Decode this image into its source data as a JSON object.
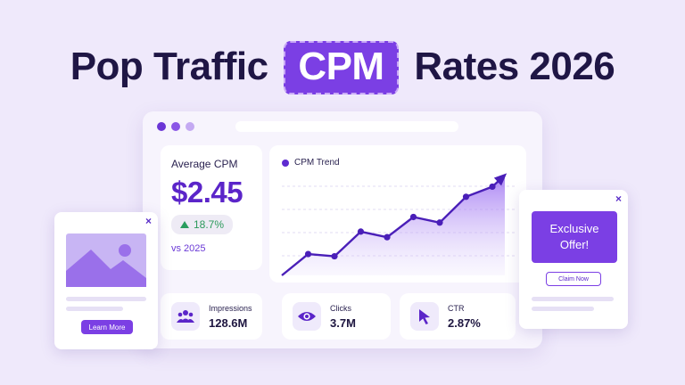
{
  "headline": {
    "before": "Pop Traffic",
    "highlight": "CPM",
    "after": "Rates 2026"
  },
  "colors": {
    "accent": "#7b3fe4",
    "accent_dark": "#5b25c9",
    "positive": "#2d9a5c",
    "background": "#efe9fb"
  },
  "window": {
    "dot_colors": [
      "#6b35d6",
      "#8a56e6",
      "#c4a9f2"
    ]
  },
  "average_cpm": {
    "label": "Average CPM",
    "value": "$2.45",
    "change": "18.7%",
    "change_icon": "triangle-up-icon",
    "comparison": "vs 2025"
  },
  "trend": {
    "title": "CPM Trend",
    "chart_data": {
      "type": "area",
      "series": [
        {
          "values": [
            0,
            19,
            17,
            39,
            34,
            52,
            47,
            70,
            79
          ]
        }
      ],
      "grid": true
    }
  },
  "stats": [
    {
      "label": "Impressions",
      "value": "128.6M",
      "icon": "users-icon"
    },
    {
      "label": "Clicks",
      "value": "3.7M",
      "icon": "eye-icon"
    },
    {
      "label": "CTR",
      "value": "2.87%",
      "icon": "cursor-icon"
    }
  ],
  "left_popup": {
    "close": "×",
    "image_icon": "image-placeholder-icon",
    "button": "Learn More"
  },
  "right_popup": {
    "close": "×",
    "offer_line1": "Exclusive",
    "offer_line2": "Offer!",
    "button": "Claim Now"
  }
}
